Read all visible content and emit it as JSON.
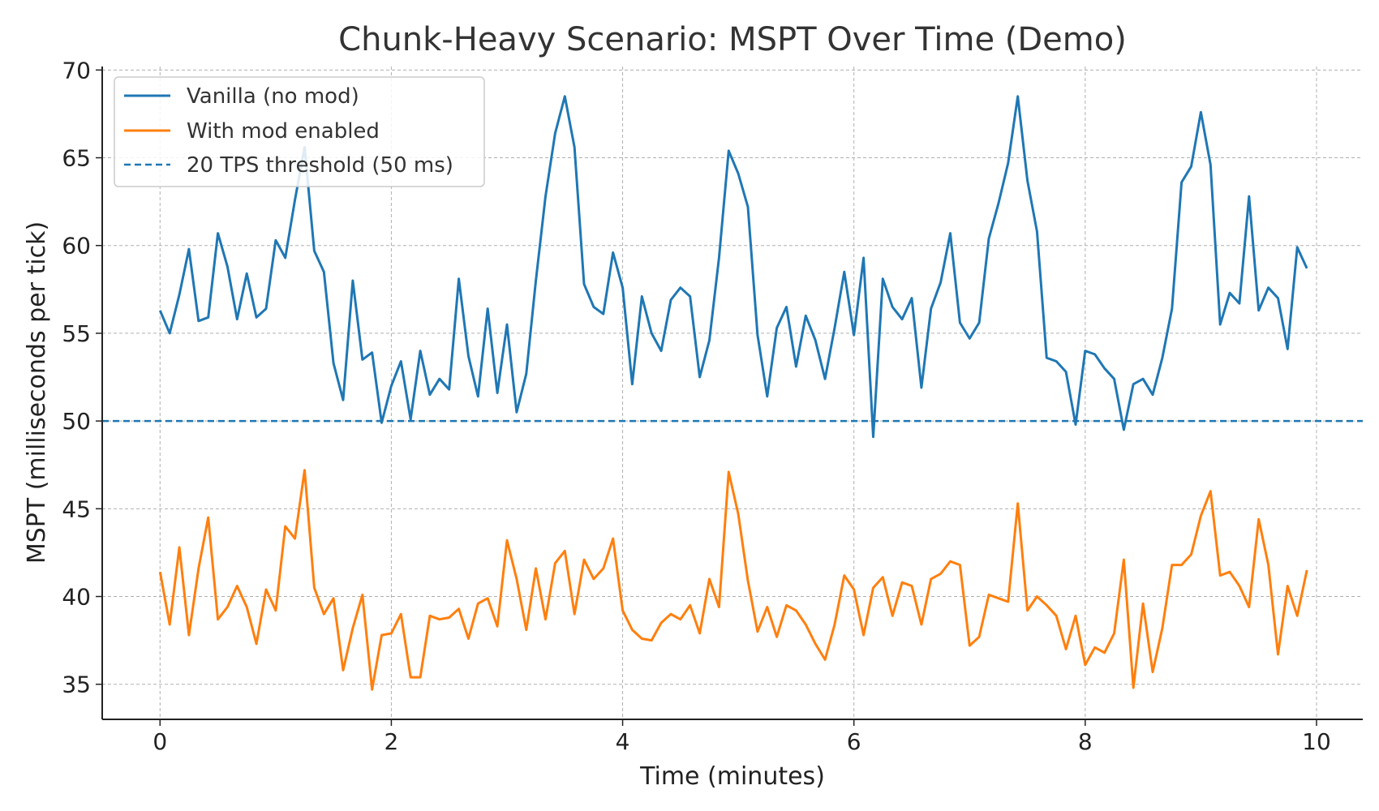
{
  "chart_data": {
    "type": "line",
    "title": "Chunk-Heavy Scenario: MSPT Over Time (Demo)",
    "xlabel": "Time (minutes)",
    "ylabel": "MSPT (milliseconds per tick)",
    "xlim": [
      -0.5,
      10.4
    ],
    "ylim": [
      33,
      70.2
    ],
    "xticks": [
      0,
      2,
      4,
      6,
      8,
      10
    ],
    "yticks": [
      35,
      40,
      45,
      50,
      55,
      60,
      65,
      70
    ],
    "grid": true,
    "legend_position": "top-left",
    "threshold": {
      "name": "20 TPS threshold (50 ms)",
      "y": 50,
      "color": "#1f77b4"
    },
    "x": [
      0,
      0.0833,
      0.1667,
      0.25,
      0.3333,
      0.4167,
      0.5,
      0.5833,
      0.6667,
      0.75,
      0.8333,
      0.9167,
      1,
      1.0833,
      1.1667,
      1.25,
      1.3333,
      1.4167,
      1.5,
      1.5833,
      1.6667,
      1.75,
      1.8333,
      1.9167,
      2,
      2.0833,
      2.1667,
      2.25,
      2.3333,
      2.4167,
      2.5,
      2.5833,
      2.6667,
      2.75,
      2.8333,
      2.9167,
      3,
      3.0833,
      3.1667,
      3.25,
      3.3333,
      3.4167,
      3.5,
      3.5833,
      3.6667,
      3.75,
      3.8333,
      3.9167,
      4,
      4.0833,
      4.1667,
      4.25,
      4.3333,
      4.4167,
      4.5,
      4.5833,
      4.6667,
      4.75,
      4.8333,
      4.9167,
      5,
      5.0833,
      5.1667,
      5.25,
      5.3333,
      5.4167,
      5.5,
      5.5833,
      5.6667,
      5.75,
      5.8333,
      5.9167,
      6,
      6.0833,
      6.1667,
      6.25,
      6.3333,
      6.4167,
      6.5,
      6.5833,
      6.6667,
      6.75,
      6.8333,
      6.9167,
      7,
      7.0833,
      7.1667,
      7.25,
      7.3333,
      7.4167,
      7.5,
      7.5833,
      7.6667,
      7.75,
      7.8333,
      7.9167,
      8,
      8.0833,
      8.1667,
      8.25,
      8.3333,
      8.4167,
      8.5,
      8.5833,
      8.6667,
      8.75,
      8.8333,
      8.9167,
      9,
      9.0833,
      9.1667,
      9.25,
      9.3333,
      9.4167,
      9.5,
      9.5833,
      9.6667,
      9.75,
      9.8333,
      9.9167
    ],
    "series": [
      {
        "name": "Vanilla (no mod)",
        "color": "#1f77b4",
        "values": [
          56.3,
          55.0,
          57.2,
          59.8,
          55.7,
          55.9,
          60.7,
          58.8,
          55.8,
          58.4,
          55.9,
          56.4,
          60.3,
          59.3,
          62.6,
          65.6,
          59.7,
          58.5,
          53.3,
          51.2,
          58.0,
          53.5,
          53.9,
          49.9,
          52.0,
          53.4,
          50.1,
          54.0,
          51.5,
          52.4,
          51.8,
          58.1,
          53.7,
          51.4,
          56.4,
          51.6,
          55.5,
          50.5,
          52.7,
          58.0,
          62.8,
          66.4,
          68.5,
          65.6,
          57.8,
          56.5,
          56.1,
          59.6,
          57.6,
          52.1,
          57.1,
          55.0,
          54.0,
          56.9,
          57.6,
          57.1,
          52.5,
          54.6,
          59.3,
          65.4,
          64.1,
          62.2,
          54.9,
          51.4,
          55.3,
          56.5,
          53.1,
          56.0,
          54.6,
          52.4,
          55.3,
          58.5,
          54.9,
          59.3,
          49.1,
          58.1,
          56.5,
          55.8,
          57.0,
          51.9,
          56.4,
          57.9,
          60.7,
          55.6,
          54.7,
          55.6,
          60.4,
          62.4,
          64.7,
          68.5,
          63.7,
          60.8,
          53.6,
          53.4,
          52.8,
          49.8,
          54.0,
          53.8,
          53.0,
          52.4,
          49.5,
          52.1,
          52.4,
          51.5,
          53.6,
          56.4,
          63.6,
          64.5,
          67.6,
          64.6,
          55.5,
          57.3,
          56.7,
          62.8,
          56.3,
          57.6,
          57.0,
          54.1,
          59.9,
          58.7
        ]
      },
      {
        "name": "With mod enabled",
        "color": "#ff7f0e",
        "values": [
          41.4,
          38.4,
          42.8,
          37.8,
          41.6,
          44.5,
          38.7,
          39.4,
          40.6,
          39.4,
          37.3,
          40.4,
          39.2,
          44.0,
          43.3,
          47.2,
          40.5,
          39.0,
          39.9,
          35.8,
          38.2,
          40.1,
          34.7,
          37.8,
          37.9,
          39.0,
          35.4,
          35.4,
          38.9,
          38.7,
          38.8,
          39.3,
          37.6,
          39.6,
          39.9,
          38.3,
          43.2,
          41.0,
          38.1,
          41.6,
          38.7,
          41.9,
          42.6,
          39.0,
          42.1,
          41.0,
          41.6,
          43.3,
          39.2,
          38.1,
          37.6,
          37.5,
          38.5,
          39.0,
          38.7,
          39.5,
          37.9,
          41.0,
          39.4,
          47.1,
          44.7,
          40.9,
          38.0,
          39.4,
          37.7,
          39.5,
          39.2,
          38.4,
          37.3,
          36.4,
          38.4,
          41.2,
          40.4,
          37.8,
          40.5,
          41.1,
          38.9,
          40.8,
          40.6,
          38.4,
          41.0,
          41.3,
          42.0,
          41.8,
          37.2,
          37.7,
          40.1,
          39.9,
          39.7,
          45.3,
          39.2,
          40.0,
          39.5,
          38.9,
          37.0,
          38.9,
          36.1,
          37.1,
          36.8,
          37.9,
          42.1,
          34.8,
          39.6,
          35.7,
          38.2,
          41.8,
          41.8,
          42.4,
          44.6,
          46.0,
          41.2,
          41.4,
          40.6,
          39.4,
          44.4,
          41.8,
          36.7,
          40.6,
          38.9,
          41.5
        ]
      }
    ]
  }
}
